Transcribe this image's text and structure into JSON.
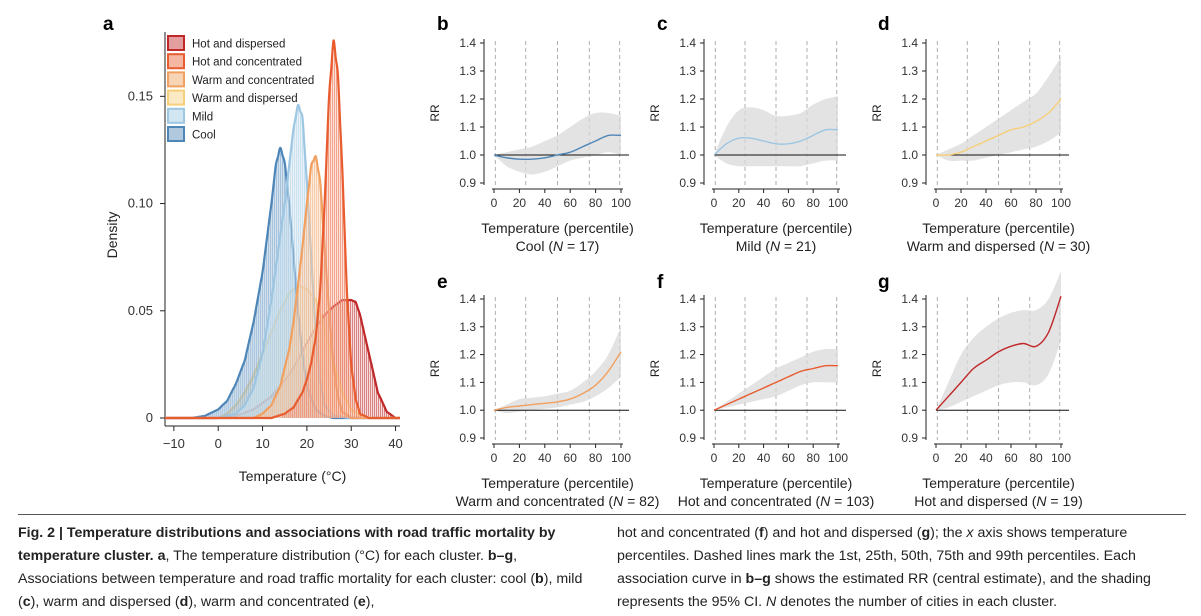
{
  "chart_data": [
    {
      "panel": "a",
      "type": "area",
      "xlabel": "Temperature (°C)",
      "ylabel": "Density",
      "xticks": [
        -10,
        0,
        10,
        20,
        30,
        40
      ],
      "yticks": [
        0,
        0.05,
        0.1,
        0.15
      ],
      "ytick_labels": [
        "0",
        "0.05",
        "0.10",
        "0.15"
      ],
      "xlim": [
        -12,
        41
      ],
      "ylim": [
        0,
        0.18
      ],
      "legend_placement": "top-right",
      "series": [
        {
          "name": "Cool",
          "color": "#4f86b8",
          "x": [
            -12,
            -6,
            -3,
            0,
            2,
            4,
            6,
            8,
            10,
            12,
            13,
            14,
            15,
            16,
            17,
            18,
            19,
            20,
            22,
            24,
            26,
            30
          ],
          "values": [
            0,
            0,
            0.001,
            0.004,
            0.008,
            0.016,
            0.027,
            0.045,
            0.068,
            0.1,
            0.118,
            0.126,
            0.119,
            0.1,
            0.075,
            0.05,
            0.03,
            0.015,
            0.004,
            0.001,
            0,
            0
          ]
        },
        {
          "name": "Mild",
          "color": "#9cc6e2",
          "x": [
            -12,
            0,
            4,
            6,
            8,
            10,
            12,
            14,
            15,
            16,
            17,
            18,
            19,
            20,
            21,
            22,
            23,
            24,
            26,
            30
          ],
          "values": [
            0,
            0,
            0.002,
            0.006,
            0.014,
            0.03,
            0.055,
            0.085,
            0.1,
            0.118,
            0.135,
            0.146,
            0.14,
            0.11,
            0.075,
            0.04,
            0.018,
            0.006,
            0.001,
            0
          ]
        },
        {
          "name": "Warm and dispersed",
          "color": "#f6cf7a",
          "x": [
            -12,
            0,
            2,
            4,
            6,
            8,
            10,
            12,
            14,
            16,
            18,
            20,
            22,
            24,
            26,
            28,
            30,
            32,
            35
          ],
          "values": [
            0,
            0,
            0.002,
            0.006,
            0.012,
            0.02,
            0.03,
            0.04,
            0.05,
            0.058,
            0.062,
            0.06,
            0.055,
            0.042,
            0.026,
            0.012,
            0.004,
            0.001,
            0
          ]
        },
        {
          "name": "Warm and concentrated",
          "color": "#f0a060",
          "x": [
            -12,
            8,
            10,
            12,
            14,
            16,
            17,
            18,
            19,
            20,
            21,
            22,
            23,
            24,
            25,
            26,
            27,
            28,
            30
          ],
          "values": [
            0,
            0,
            0.002,
            0.006,
            0.015,
            0.032,
            0.045,
            0.062,
            0.08,
            0.1,
            0.118,
            0.122,
            0.11,
            0.08,
            0.05,
            0.025,
            0.01,
            0.003,
            0
          ]
        },
        {
          "name": "Hot and concentrated",
          "color": "#e85c30",
          "x": [
            -12,
            12,
            15,
            17,
            19,
            20,
            21,
            22,
            23,
            24,
            25,
            26,
            27,
            28,
            29,
            30,
            31,
            32,
            34
          ],
          "values": [
            0,
            0,
            0.002,
            0.005,
            0.012,
            0.018,
            0.026,
            0.038,
            0.06,
            0.1,
            0.15,
            0.176,
            0.16,
            0.115,
            0.06,
            0.025,
            0.009,
            0.002,
            0
          ]
        },
        {
          "name": "Hot and dispersed",
          "color": "#c0282a",
          "x": [
            -12,
            0,
            4,
            8,
            12,
            16,
            18,
            20,
            22,
            24,
            26,
            28,
            30,
            31,
            32,
            34,
            36,
            38,
            40
          ],
          "values": [
            0,
            0,
            0.001,
            0.004,
            0.01,
            0.02,
            0.027,
            0.035,
            0.042,
            0.048,
            0.052,
            0.055,
            0.055,
            0.054,
            0.048,
            0.03,
            0.012,
            0.003,
            0
          ]
        }
      ]
    },
    {
      "panel": "b",
      "type": "line",
      "title": "Cool",
      "n_label": "(N = 17)",
      "xlabel": "Temperature (percentile)",
      "ylabel": "RR",
      "color": "#4f86b8",
      "x": [
        0,
        10,
        20,
        30,
        40,
        50,
        60,
        70,
        80,
        90,
        100
      ],
      "values": [
        1.0,
        0.99,
        0.985,
        0.985,
        0.99,
        1.0,
        1.01,
        1.03,
        1.05,
        1.07,
        1.07
      ],
      "lower": [
        1.0,
        0.96,
        0.94,
        0.93,
        0.94,
        0.96,
        0.98,
        0.99,
        1.0,
        1.01,
        1.0
      ],
      "upper": [
        1.0,
        1.01,
        1.02,
        1.03,
        1.05,
        1.07,
        1.1,
        1.13,
        1.15,
        1.15,
        1.14
      ]
    },
    {
      "panel": "c",
      "type": "line",
      "title": "Mild",
      "n_label": "(N = 21)",
      "xlabel": "Temperature (percentile)",
      "ylabel": "RR",
      "color": "#9cc6e2",
      "x": [
        0,
        10,
        20,
        30,
        40,
        50,
        60,
        70,
        80,
        90,
        100
      ],
      "values": [
        1.0,
        1.04,
        1.06,
        1.06,
        1.05,
        1.04,
        1.04,
        1.05,
        1.07,
        1.09,
        1.09
      ],
      "lower": [
        1.0,
        0.97,
        0.96,
        0.96,
        0.96,
        0.96,
        0.96,
        0.96,
        0.97,
        0.98,
        0.98
      ],
      "upper": [
        1.0,
        1.1,
        1.16,
        1.17,
        1.16,
        1.14,
        1.14,
        1.15,
        1.18,
        1.2,
        1.21
      ]
    },
    {
      "panel": "d",
      "type": "line",
      "title": "Warm and dispersed",
      "n_label": "(N = 30)",
      "xlabel": "Temperature (percentile)",
      "ylabel": "RR",
      "color": "#f6cf7a",
      "x": [
        0,
        10,
        20,
        30,
        40,
        50,
        60,
        70,
        80,
        90,
        100
      ],
      "values": [
        1.0,
        1.0,
        1.01,
        1.03,
        1.05,
        1.07,
        1.09,
        1.1,
        1.12,
        1.15,
        1.2
      ],
      "lower": [
        1.0,
        0.98,
        0.98,
        0.98,
        0.99,
        1.0,
        1.01,
        1.02,
        1.03,
        1.05,
        1.08
      ],
      "upper": [
        1.0,
        1.02,
        1.04,
        1.07,
        1.1,
        1.13,
        1.16,
        1.19,
        1.22,
        1.28,
        1.35
      ]
    },
    {
      "panel": "e",
      "type": "line",
      "title": "Warm and concentrated",
      "n_label": "(N = 82)",
      "xlabel": "Temperature (percentile)",
      "ylabel": "RR",
      "color": "#f0a060",
      "x": [
        0,
        10,
        20,
        30,
        40,
        50,
        60,
        70,
        80,
        90,
        100
      ],
      "values": [
        1.0,
        1.01,
        1.015,
        1.02,
        1.025,
        1.03,
        1.04,
        1.06,
        1.09,
        1.14,
        1.21
      ],
      "lower": [
        1.0,
        0.99,
        0.995,
        1.0,
        1.005,
        1.01,
        1.02,
        1.03,
        1.05,
        1.08,
        1.12
      ],
      "upper": [
        1.0,
        1.02,
        1.04,
        1.045,
        1.05,
        1.06,
        1.07,
        1.1,
        1.14,
        1.2,
        1.3
      ]
    },
    {
      "panel": "f",
      "type": "line",
      "title": "Hot and concentrated",
      "n_label": "(N = 103)",
      "xlabel": "Temperature (percentile)",
      "ylabel": "RR",
      "color": "#e85c30",
      "x": [
        0,
        10,
        20,
        30,
        40,
        50,
        60,
        70,
        80,
        90,
        100
      ],
      "values": [
        1.0,
        1.02,
        1.04,
        1.06,
        1.08,
        1.1,
        1.12,
        1.14,
        1.15,
        1.16,
        1.16
      ],
      "lower": [
        1.0,
        1.01,
        1.02,
        1.03,
        1.04,
        1.05,
        1.07,
        1.09,
        1.1,
        1.1,
        1.1
      ],
      "upper": [
        1.0,
        1.03,
        1.06,
        1.09,
        1.12,
        1.15,
        1.17,
        1.19,
        1.21,
        1.22,
        1.22
      ]
    },
    {
      "panel": "g",
      "type": "line",
      "title": "Hot and dispersed",
      "n_label": "(N = 19)",
      "xlabel": "Temperature (percentile)",
      "ylabel": "RR",
      "color": "#c0282a",
      "x": [
        0,
        10,
        20,
        30,
        40,
        50,
        60,
        70,
        80,
        90,
        100
      ],
      "values": [
        1.0,
        1.05,
        1.1,
        1.15,
        1.18,
        1.21,
        1.23,
        1.24,
        1.23,
        1.28,
        1.41
      ],
      "lower": [
        1.0,
        1.01,
        1.03,
        1.05,
        1.07,
        1.09,
        1.1,
        1.1,
        1.09,
        1.13,
        1.25
      ],
      "upper": [
        1.0,
        1.1,
        1.2,
        1.26,
        1.3,
        1.33,
        1.35,
        1.36,
        1.36,
        1.4,
        1.5
      ]
    }
  ],
  "panel_axes": {
    "rr_ticks": [
      "0.9",
      "1.0",
      "1.1",
      "1.2",
      "1.3",
      "1.4"
    ],
    "pct_ticks": [
      "0",
      "20",
      "40",
      "60",
      "80",
      "100"
    ],
    "dashed_percentiles": [
      1,
      25,
      50,
      75,
      99
    ],
    "ylim": [
      0.9,
      1.4
    ],
    "baseline": 1.0
  },
  "caption": {
    "fig_label": "Fig. 2 | ",
    "title": "Temperature distributions and associations with road traffic mortality by temperature cluster.",
    "body_left": [
      {
        "b": " a",
        "t": ", The temperature distribution (°C) for each cluster. "
      },
      {
        "b": "b–g",
        "t": ", Associations between temperature and road traffic mortality for each cluster: cool ("
      },
      {
        "b": "b",
        "t": "), mild ("
      },
      {
        "b": "c",
        "t": "), warm and dispersed ("
      },
      {
        "b": "d",
        "t": "), warm and concentrated ("
      },
      {
        "b": "e",
        "t": "),"
      }
    ],
    "body_right": [
      {
        "b": "",
        "t": "hot and concentrated ("
      },
      {
        "b": "f",
        "t": ") and hot and dispersed ("
      },
      {
        "b": "g",
        "t": "); the "
      },
      {
        "i": "x",
        "t": " axis shows temperature percentiles. Dashed lines mark the 1st, 25th, 50th, 75th and 99th percentiles. Each association curve in "
      },
      {
        "b": "b–g",
        "t": " shows the estimated RR (central estimate), and the shading represents the 95% CI. "
      },
      {
        "i": "N",
        "t": " denotes the number of cities in each cluster."
      }
    ]
  }
}
